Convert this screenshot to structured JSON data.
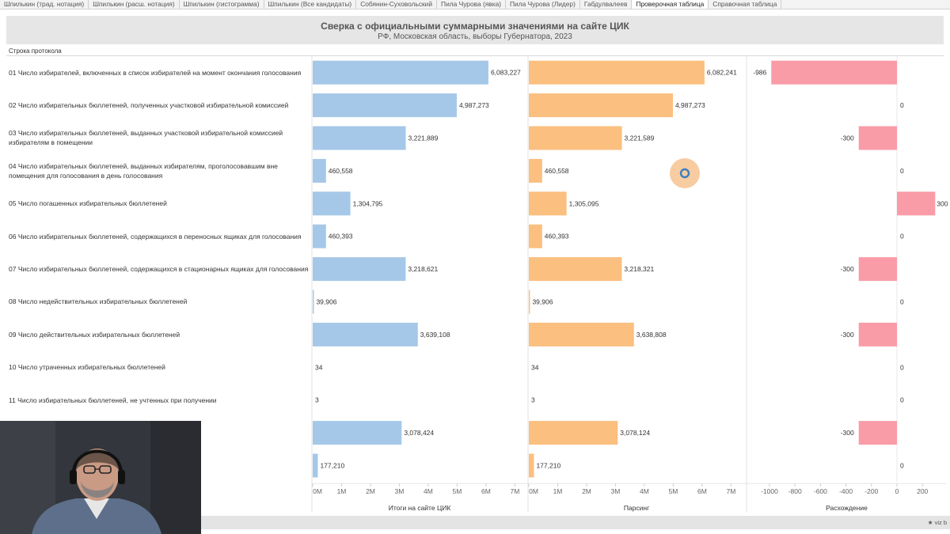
{
  "tabs": [
    {
      "label": "Шпилькин (трад. нотация)"
    },
    {
      "label": "Шпилькин (расш. нотация)"
    },
    {
      "label": "Шпилькин (гистограмма)"
    },
    {
      "label": "Шпилькин (Все кандидаты)"
    },
    {
      "label": "Собянин-Суховольский"
    },
    {
      "label": "Пила Чурова (явка)"
    },
    {
      "label": "Пила Чурова (Лидер)"
    },
    {
      "label": "Габдулвалеев"
    },
    {
      "label": "Проверочная таблица",
      "active": true
    },
    {
      "label": "Справочная таблица"
    }
  ],
  "title": {
    "main": "Сверка с официальными суммарными значениями на сайте ЦИК",
    "sub": "РФ, Московская область, выборы Губернатора, 2023"
  },
  "row_header": "Строка протокола",
  "rows": [
    {
      "label": "01 Число избирателей, включенных в список избирателей на момент окончания голосования"
    },
    {
      "label": "02 Число избирательных бюллетеней, полученных участковой избирательной комиссией"
    },
    {
      "label": "03 Число избирательных бюллетеней, выданных участковой избирательной комиссией избирателям в помещении"
    },
    {
      "label": "04 Число избирательных бюллетеней, выданных избирателям, проголосовавшим вне помещения для голосования в день голосования"
    },
    {
      "label": "05 Число погашенных избирательных бюллетеней"
    },
    {
      "label": "06 Число избирательных бюллетеней, содержащихся в переносных ящиках для голосования"
    },
    {
      "label": "07 Число избирательных бюллетеней, содержащихся в стационарных ящиках для голосования"
    },
    {
      "label": "08 Число недействительных избирательных бюллетеней"
    },
    {
      "label": "09 Число действительных избирательных бюллетеней"
    },
    {
      "label": "10 Число утраченных избирательных бюллетеней"
    },
    {
      "label": "11 Число избирательных бюллетеней, не учтенных при получении"
    },
    {
      "label": ""
    },
    {
      "label": ""
    }
  ],
  "chart_data": {
    "type": "bar",
    "orientation": "horizontal",
    "panels": [
      {
        "name": "Итоги на сайте ЦИК",
        "color": "#a5c8e8",
        "xlim": [
          0,
          7000000
        ],
        "ticks": [
          "0M",
          "1M",
          "2M",
          "3M",
          "4M",
          "5M",
          "6M",
          "7M"
        ],
        "tick_values": [
          0,
          1000000,
          2000000,
          3000000,
          4000000,
          5000000,
          6000000,
          7000000
        ],
        "values": [
          6083227,
          4987273,
          3221889,
          460558,
          1304795,
          460393,
          3218621,
          39906,
          3639108,
          34,
          3,
          3078424,
          177210
        ],
        "labels": [
          "6,083,227",
          "4,987,273",
          "3,221,889",
          "460,558",
          "1,304,795",
          "460,393",
          "3,218,621",
          "39,906",
          "3,639,108",
          "34",
          "3",
          "3,078,424",
          "177,210"
        ]
      },
      {
        "name": "Парсинг",
        "color": "#fbbf7f",
        "xlim": [
          0,
          7000000
        ],
        "ticks": [
          "0M",
          "1M",
          "2M",
          "3M",
          "4M",
          "5M",
          "6M",
          "7M"
        ],
        "tick_values": [
          0,
          1000000,
          2000000,
          3000000,
          4000000,
          5000000,
          6000000,
          7000000
        ],
        "values": [
          6082241,
          4987273,
          3221589,
          460558,
          1305095,
          460393,
          3218321,
          39906,
          3638808,
          34,
          3,
          3078124,
          177210
        ],
        "labels": [
          "6,082,241",
          "4,987,273",
          "3,221,589",
          "460,558",
          "1,305,095",
          "460,393",
          "3,218,321",
          "39,906",
          "3,638,808",
          "34",
          "3",
          "3,078,124",
          "177,210"
        ]
      },
      {
        "name": "Расхождение",
        "color": "#f99ca8",
        "xlim": [
          -1100,
          300
        ],
        "ticks": [
          "-1000",
          "-800",
          "-600",
          "-400",
          "-200",
          "0",
          "200"
        ],
        "tick_values": [
          -1000,
          -800,
          -600,
          -400,
          -200,
          0,
          200
        ],
        "values": [
          -986,
          0,
          -300,
          0,
          300,
          0,
          -300,
          0,
          -300,
          0,
          0,
          -300,
          0
        ],
        "labels": [
          "-986",
          "0",
          "-300",
          "0",
          "300",
          "0",
          "-300",
          "0",
          "-300",
          "0",
          "0",
          "-300",
          "0"
        ]
      }
    ]
  },
  "footer": {
    "note": "★ viz b"
  }
}
